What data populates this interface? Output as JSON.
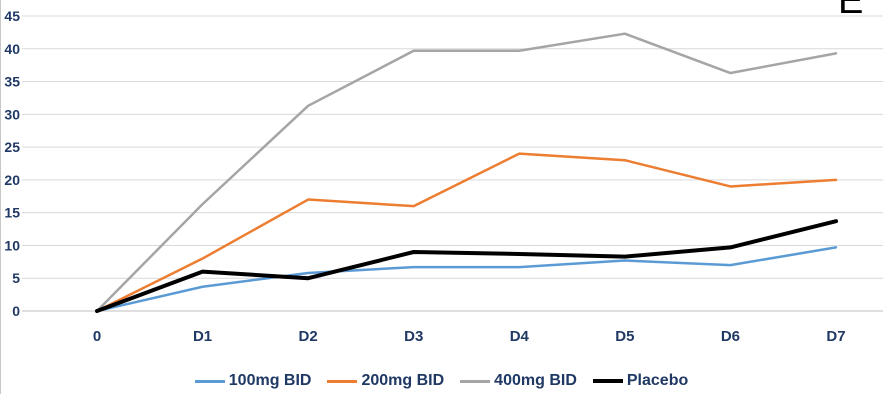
{
  "panel_letter": "E",
  "chart_data": {
    "type": "line",
    "categories": [
      "0",
      "D1",
      "D2",
      "D3",
      "D4",
      "D5",
      "D6",
      "D7"
    ],
    "ylim": [
      0,
      45
    ],
    "yticks": [
      0,
      5,
      10,
      15,
      20,
      25,
      30,
      35,
      40,
      45
    ],
    "grid": true,
    "legend_position": "bottom",
    "series": [
      {
        "name": "100mg BID",
        "color": "#5b9bd5",
        "width": 2.5,
        "values": [
          0,
          3.7,
          5.8,
          6.7,
          6.7,
          7.7,
          7.0,
          9.7
        ]
      },
      {
        "name": "200mg BID",
        "color": "#ed7d31",
        "width": 2.5,
        "values": [
          0,
          8.0,
          17.0,
          16.0,
          24.0,
          23.0,
          19.0,
          20.0
        ]
      },
      {
        "name": "400mg BID",
        "color": "#a5a5a5",
        "width": 2.5,
        "values": [
          0,
          16.3,
          31.3,
          39.7,
          39.7,
          42.3,
          36.3,
          39.3
        ]
      },
      {
        "name": "Placebo",
        "color": "#000000",
        "width": 4,
        "values": [
          0,
          6.0,
          5.0,
          9.0,
          8.7,
          8.3,
          9.7,
          13.7
        ]
      }
    ]
  }
}
